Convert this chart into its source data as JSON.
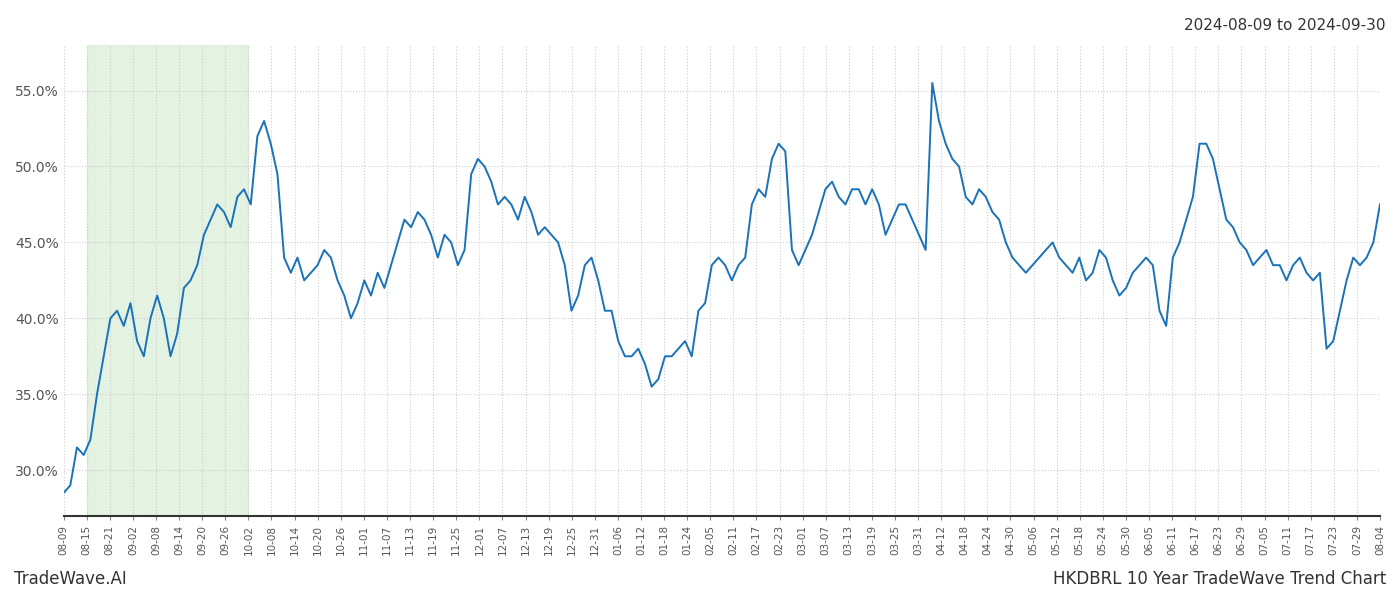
{
  "title_top_right": "2024-08-09 to 2024-09-30",
  "footer_left": "TradeWave.AI",
  "footer_right": "HKDBRL 10 Year TradeWave Trend Chart",
  "line_color": "#1a72b8",
  "line_width": 1.4,
  "shading_color": "#d6ecd2",
  "shading_alpha": 0.65,
  "background_color": "#ffffff",
  "grid_color": "#cccccc",
  "grid_style": ":",
  "ylim": [
    27.0,
    58.0
  ],
  "yticks": [
    30.0,
    35.0,
    40.0,
    45.0,
    50.0,
    55.0
  ],
  "x_labels": [
    "08-09",
    "08-15",
    "08-21",
    "09-02",
    "09-08",
    "09-14",
    "09-20",
    "09-26",
    "10-02",
    "10-08",
    "10-14",
    "10-20",
    "10-26",
    "11-01",
    "11-07",
    "11-13",
    "11-19",
    "11-25",
    "12-01",
    "12-07",
    "12-13",
    "12-19",
    "12-25",
    "12-31",
    "01-06",
    "01-12",
    "01-18",
    "01-24",
    "02-05",
    "02-11",
    "02-17",
    "02-23",
    "03-01",
    "03-07",
    "03-13",
    "03-19",
    "03-25",
    "03-31",
    "04-12",
    "04-18",
    "04-24",
    "04-30",
    "05-06",
    "05-12",
    "05-18",
    "05-24",
    "05-30",
    "06-05",
    "06-11",
    "06-17",
    "06-23",
    "06-29",
    "07-05",
    "07-11",
    "07-17",
    "07-23",
    "07-29",
    "08-04"
  ],
  "shade_start_label": "08-15",
  "shade_end_label": "10-02",
  "y_values": [
    28.5,
    29.0,
    31.5,
    31.0,
    32.0,
    35.0,
    37.5,
    40.0,
    40.5,
    39.5,
    41.0,
    38.5,
    37.5,
    40.0,
    41.5,
    40.0,
    37.5,
    39.0,
    42.0,
    42.5,
    43.5,
    45.5,
    46.5,
    47.5,
    47.0,
    46.0,
    48.0,
    48.5,
    47.5,
    52.0,
    53.0,
    51.5,
    49.5,
    44.0,
    43.0,
    44.0,
    42.5,
    43.0,
    43.5,
    44.5,
    44.0,
    42.5,
    41.5,
    40.0,
    41.0,
    42.5,
    41.5,
    43.0,
    42.0,
    43.5,
    45.0,
    46.5,
    46.0,
    47.0,
    46.5,
    45.5,
    44.0,
    45.5,
    45.0,
    43.5,
    44.5,
    49.5,
    50.5,
    50.0,
    49.0,
    47.5,
    48.0,
    47.5,
    46.5,
    48.0,
    47.0,
    45.5,
    46.0,
    45.5,
    45.0,
    43.5,
    40.5,
    41.5,
    43.5,
    44.0,
    42.5,
    40.5,
    40.5,
    38.5,
    37.5,
    37.5,
    38.0,
    37.0,
    35.5,
    36.0,
    37.5,
    37.5,
    38.0,
    38.5,
    37.5,
    40.5,
    41.0,
    43.5,
    44.0,
    43.5,
    42.5,
    43.5,
    44.0,
    47.5,
    48.5,
    48.0,
    50.5,
    51.5,
    51.0,
    44.5,
    43.5,
    44.5,
    45.5,
    47.0,
    48.5,
    49.0,
    48.0,
    47.5,
    48.5,
    48.5,
    47.5,
    48.5,
    47.5,
    45.5,
    46.5,
    47.5,
    47.5,
    46.5,
    45.5,
    44.5,
    55.5,
    53.0,
    51.5,
    50.5,
    50.0,
    48.0,
    47.5,
    48.5,
    48.0,
    47.0,
    46.5,
    45.0,
    44.0,
    43.5,
    43.0,
    43.5,
    44.0,
    44.5,
    45.0,
    44.0,
    43.5,
    43.0,
    44.0,
    42.5,
    43.0,
    44.5,
    44.0,
    42.5,
    41.5,
    42.0,
    43.0,
    43.5,
    44.0,
    43.5,
    40.5,
    39.5,
    44.0,
    45.0,
    46.5,
    48.0,
    51.5,
    51.5,
    50.5,
    48.5,
    46.5,
    46.0,
    45.0,
    44.5,
    43.5,
    44.0,
    44.5,
    43.5,
    43.5,
    42.5,
    43.5,
    44.0,
    43.0,
    42.5,
    43.0,
    38.0,
    38.5,
    40.5,
    42.5,
    44.0,
    43.5,
    44.0,
    45.0,
    47.5
  ]
}
